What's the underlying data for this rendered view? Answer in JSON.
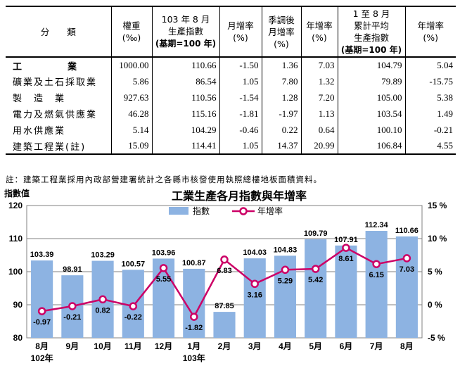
{
  "table": {
    "headers": {
      "category": "分　　類",
      "weight_l1": "權重",
      "weight_l2": "(‰)",
      "index_l1": "103 年 8 月",
      "index_l2": "生產指數",
      "index_l3": "(基期=100 年)",
      "mom_l1": "月增率",
      "mom_l2": "(%)",
      "sa_l1": "季調後",
      "sa_l2": "月增率",
      "sa_l3": "(%)",
      "yoy_l1": "年增率",
      "yoy_l2": "(%)",
      "cum_l1": "1 至 8 月",
      "cum_l2": "累計平均",
      "cum_l3": "生產指數",
      "cum_l4": "(基期=100 年)",
      "cumyoy_l1": "年增率",
      "cumyoy_l2": "(%)"
    },
    "rows": [
      {
        "name": "工　業",
        "weight": "1000.00",
        "index": "110.66",
        "mom": "-1.50",
        "sa": "1.36",
        "yoy": "7.03",
        "cum": "104.79",
        "cumyoy": "5.04"
      },
      {
        "name": "礦業及土石採取業",
        "weight": "5.86",
        "index": "86.54",
        "mom": "1.05",
        "sa": "7.80",
        "yoy": "1.32",
        "cum": "79.89",
        "cumyoy": "-15.75"
      },
      {
        "name": "製　造　業",
        "weight": "927.63",
        "index": "110.56",
        "mom": "-1.54",
        "sa": "1.28",
        "yoy": "7.20",
        "cum": "105.00",
        "cumyoy": "5.38"
      },
      {
        "name": "電力及燃氣供應業",
        "weight": "46.28",
        "index": "115.16",
        "mom": "-1.81",
        "sa": "-1.97",
        "yoy": "1.13",
        "cum": "103.54",
        "cumyoy": "1.49"
      },
      {
        "name": "用水供應業",
        "weight": "5.14",
        "index": "104.29",
        "mom": "-0.46",
        "sa": "0.22",
        "yoy": "0.64",
        "cum": "100.10",
        "cumyoy": "-0.21"
      },
      {
        "name": "建築工程業(註)",
        "weight": "15.09",
        "index": "114.41",
        "mom": "1.05",
        "sa": "14.37",
        "yoy": "20.99",
        "cum": "106.84",
        "cumyoy": "4.55"
      }
    ],
    "footnote": "註：建築工程業採用內政部營建署統計之各縣市核發使用執照總樓地板面積資料。"
  },
  "chart_data": {
    "type": "bar",
    "title": "工業生產各月指數與年增率",
    "ylabel": "指數值",
    "categories": [
      "8月",
      "9月",
      "10月",
      "11月",
      "12月",
      "1月",
      "2月",
      "3月",
      "4月",
      "5月",
      "6月",
      "7月",
      "8月"
    ],
    "year_labels": [
      {
        "index": 0,
        "text": "102年"
      },
      {
        "index": 5,
        "text": "103年"
      }
    ],
    "ylim": [
      80,
      120
    ],
    "y_ticks": [
      "80",
      "90",
      "100",
      "110",
      "120"
    ],
    "y2lim": [
      -5,
      15
    ],
    "y2_ticks": [
      "-5 %",
      "0 %",
      "5 %",
      "10 %",
      "15 %"
    ],
    "legend_position": "top-center",
    "series": [
      {
        "name": "指數",
        "type": "bar",
        "color": "#8DB3E2",
        "values": [
          103.39,
          98.91,
          103.29,
          100.57,
          103.96,
          100.87,
          87.85,
          104.03,
          104.83,
          109.79,
          107.91,
          112.34,
          110.66
        ],
        "labels": [
          "103.39",
          "98.91",
          "103.29",
          "100.57",
          "103.96",
          "100.87",
          "87.85",
          "104.03",
          "104.83",
          "109.79",
          "107.91",
          "112.34",
          "110.66"
        ]
      },
      {
        "name": "年增率",
        "type": "line",
        "axis": "right",
        "color": "#CC0066",
        "values": [
          -0.97,
          -0.21,
          0.82,
          -0.22,
          5.55,
          -1.82,
          6.83,
          3.16,
          5.29,
          5.42,
          8.61,
          6.15,
          7.03
        ],
        "labels": [
          "-0.97",
          "-0.21",
          "0.82",
          "-0.22",
          "5.55",
          "-1.82",
          "6.83",
          "3.16",
          "5.29",
          "5.42",
          "8.61",
          "6.15",
          "7.03"
        ]
      }
    ]
  }
}
